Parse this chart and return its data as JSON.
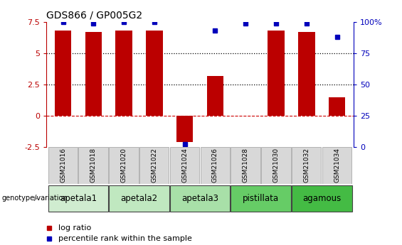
{
  "title": "GDS866 / GP005G2",
  "samples": [
    "GSM21016",
    "GSM21018",
    "GSM21020",
    "GSM21022",
    "GSM21024",
    "GSM21026",
    "GSM21028",
    "GSM21030",
    "GSM21032",
    "GSM21034"
  ],
  "log_ratios": [
    6.8,
    6.7,
    6.8,
    6.8,
    -2.1,
    3.2,
    0.0,
    6.8,
    6.7,
    1.5
  ],
  "percentile_ranks": [
    100,
    99,
    100,
    100,
    2,
    93,
    99,
    99,
    99,
    88
  ],
  "groups": [
    {
      "label": "apetala1",
      "samples": [
        0,
        1
      ],
      "color": "#d0ecd0"
    },
    {
      "label": "apetala2",
      "samples": [
        2,
        3
      ],
      "color": "#c0e8c0"
    },
    {
      "label": "apetala3",
      "samples": [
        4,
        5
      ],
      "color": "#a8e0a8"
    },
    {
      "label": "pistillata",
      "samples": [
        6,
        7
      ],
      "color": "#66cc66"
    },
    {
      "label": "agamous",
      "samples": [
        8,
        9
      ],
      "color": "#44bb44"
    }
  ],
  "ylim_left": [
    -2.5,
    7.5
  ],
  "ylim_right": [
    0,
    100
  ],
  "bar_color": "#bb0000",
  "dot_color": "#0000bb",
  "zero_line_color": "#cc0000",
  "grid_color": "#000000",
  "sample_box_color": "#d8d8d8",
  "sample_box_border": "#aaaaaa",
  "left_axis_ticks": [
    -2.5,
    0,
    2.5,
    5,
    7.5
  ],
  "left_axis_labels": [
    "-2.5",
    "0",
    "2.5",
    "5",
    "7.5"
  ],
  "right_axis_ticks": [
    0,
    25,
    50,
    75,
    100
  ],
  "right_axis_labels": [
    "0",
    "25",
    "50",
    "75",
    "100%"
  ]
}
